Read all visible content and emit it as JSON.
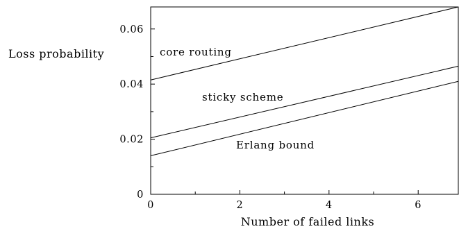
{
  "chart_data": {
    "type": "line",
    "title": "",
    "xlabel": "Number of failed links",
    "ylabel": "Loss probability",
    "xlim": [
      0,
      6.9
    ],
    "ylim": [
      0,
      0.068
    ],
    "xticks": [
      0,
      2,
      4,
      6
    ],
    "xtick_labels": [
      "0",
      "2",
      "4",
      "6"
    ],
    "yticks": [
      0,
      0.02,
      0.04,
      0.06
    ],
    "ytick_labels": [
      "0",
      "0.02",
      "0.04",
      "0.06"
    ],
    "grid": false,
    "legend": "none",
    "series": [
      {
        "name": "core routing",
        "x": [
          0,
          6.9
        ],
        "y": [
          0.0415,
          0.068
        ]
      },
      {
        "name": "sticky scheme",
        "x": [
          0,
          6.9
        ],
        "y": [
          0.0205,
          0.0465
        ]
      },
      {
        "name": "Erlang bound",
        "x": [
          0,
          6.9
        ],
        "y": [
          0.014,
          0.041
        ]
      }
    ]
  }
}
